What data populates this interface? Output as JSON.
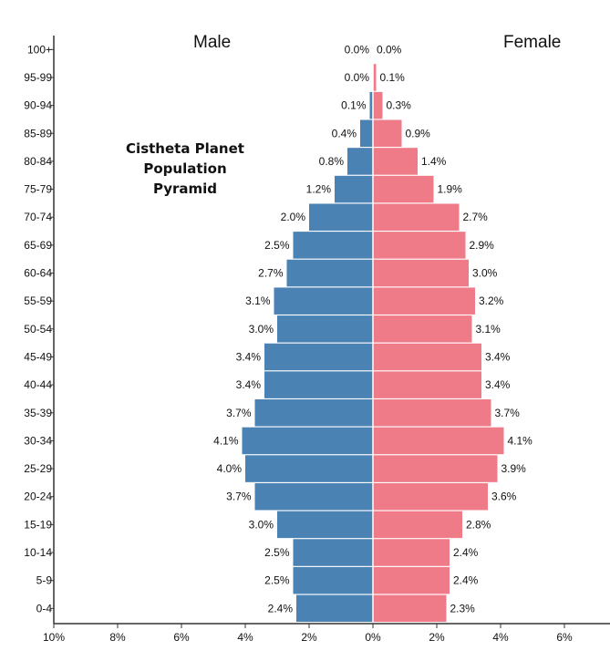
{
  "chart_data": {
    "type": "bar",
    "orientation": "horizontal-pyramid",
    "title": "Cistheta Planet\nPopulation\nPyramid",
    "categories": [
      "100+",
      "95-99",
      "90-94",
      "85-89",
      "80-84",
      "75-79",
      "70-74",
      "65-69",
      "60-64",
      "55-59",
      "50-54",
      "45-49",
      "40-44",
      "35-39",
      "30-34",
      "25-29",
      "20-24",
      "15-19",
      "10-14",
      "5-9",
      "0-4"
    ],
    "series": [
      {
        "name": "Male",
        "color": "#4a82b4",
        "values": [
          0.0,
          0.0,
          0.1,
          0.4,
          0.8,
          1.2,
          2.0,
          2.5,
          2.7,
          3.1,
          3.0,
          3.4,
          3.4,
          3.7,
          4.1,
          4.0,
          3.7,
          3.0,
          2.5,
          2.5,
          2.4
        ],
        "labels": [
          "0.0%",
          "0.0%",
          "0.1%",
          "0.4%",
          "0.8%",
          "1.2%",
          "2.0%",
          "2.5%",
          "2.7%",
          "3.1%",
          "3.0%",
          "3.4%",
          "3.4%",
          "3.7%",
          "4.1%",
          "4.0%",
          "3.7%",
          "3.0%",
          "2.5%",
          "2.5%",
          "2.4%"
        ]
      },
      {
        "name": "Female",
        "color": "#ef7b88",
        "values": [
          0.0,
          0.1,
          0.3,
          0.9,
          1.4,
          1.9,
          2.7,
          2.9,
          3.0,
          3.2,
          3.1,
          3.4,
          3.4,
          3.7,
          4.1,
          3.9,
          3.6,
          2.8,
          2.4,
          2.4,
          2.3
        ],
        "labels": [
          "0.0%",
          "0.1%",
          "0.3%",
          "0.9%",
          "1.4%",
          "1.9%",
          "2.7%",
          "2.9%",
          "3.0%",
          "3.2%",
          "3.1%",
          "3.4%",
          "3.4%",
          "3.7%",
          "4.1%",
          "3.9%",
          "3.6%",
          "2.8%",
          "2.4%",
          "2.4%",
          "2.3%"
        ]
      }
    ],
    "x_ticks": [
      {
        "value": -10,
        "label": "10%"
      },
      {
        "value": -8,
        "label": "8%"
      },
      {
        "value": -6,
        "label": "6%"
      },
      {
        "value": -4,
        "label": "4%"
      },
      {
        "value": -2,
        "label": "2%"
      },
      {
        "value": 0,
        "label": "0%"
      },
      {
        "value": 2,
        "label": "2%"
      },
      {
        "value": 4,
        "label": "4%"
      },
      {
        "value": 6,
        "label": "6%"
      }
    ],
    "xlim": [
      -10,
      7.3
    ],
    "grid": false
  }
}
